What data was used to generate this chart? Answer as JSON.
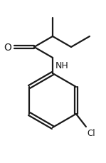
{
  "background_color": "#ffffff",
  "line_color": "#1a1a1a",
  "label_color": "#1a1a1a",
  "bond_width": 1.6,
  "figsize": [
    1.49,
    2.3
  ],
  "dpi": 100,
  "cl_label": "Cl",
  "nh_label": "NH",
  "o_label": "O"
}
